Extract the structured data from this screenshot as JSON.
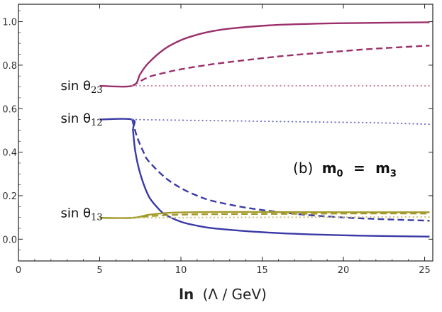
{
  "chart_data": {
    "type": "line",
    "title": "",
    "annotation": {
      "prefix": "(b)",
      "lhs": "m",
      "lhs_sub": "0",
      "eq": "=",
      "rhs": "m",
      "rhs_sub": "3"
    },
    "xlabel": {
      "main": "ln",
      "paren": "(Λ / GeV)"
    },
    "ylabel": "",
    "xlim": [
      0,
      25.5
    ],
    "ylim": [
      -0.1,
      1.08
    ],
    "x_ticks": [
      0,
      5,
      10,
      15,
      20,
      25
    ],
    "y_ticks": [
      0.0,
      0.2,
      0.4,
      0.6,
      0.8,
      1.0
    ],
    "x_tick_labels": [
      "0",
      "5",
      "10",
      "15",
      "20",
      "25"
    ],
    "y_tick_labels": [
      "0.0",
      "0.2",
      "0.4",
      "0.6",
      "0.8",
      "1.0"
    ],
    "curve_labels": [
      {
        "name": "sin θ23",
        "text": "sin θ",
        "sub": "23",
        "x": 2.6,
        "y": 0.705
      },
      {
        "name": "sin θ12",
        "text": "sin θ",
        "sub": "12",
        "x": 2.6,
        "y": 0.555
      },
      {
        "name": "sin θ13",
        "text": "sin θ",
        "sub": "13",
        "x": 2.6,
        "y": 0.12
      }
    ],
    "series": [
      {
        "name": "sin θ23 solid",
        "color": "#9b2f6b",
        "style": "solid",
        "x": [
          5,
          7,
          7.5,
          8,
          9,
          10,
          11,
          12,
          13,
          15,
          17,
          20,
          25.3
        ],
        "y": [
          0.705,
          0.705,
          0.76,
          0.81,
          0.875,
          0.915,
          0.94,
          0.957,
          0.968,
          0.981,
          0.988,
          0.993,
          0.997
        ]
      },
      {
        "name": "sin θ23 dashed",
        "color": "#9b2f6b",
        "style": "dashed",
        "x": [
          7,
          8,
          9,
          10,
          12,
          15,
          17,
          20,
          22,
          25.3
        ],
        "y": [
          0.705,
          0.745,
          0.765,
          0.781,
          0.805,
          0.832,
          0.847,
          0.865,
          0.876,
          0.89
        ]
      },
      {
        "name": "sin θ23 dotted",
        "color": "#c97fa5",
        "style": "dotted",
        "x": [
          7,
          25.3
        ],
        "y": [
          0.705,
          0.705
        ]
      },
      {
        "name": "sin θ12 solid",
        "color": "#3a3aa6",
        "style": "solid",
        "x": [
          5,
          7,
          7.05,
          7.2,
          7.5,
          8,
          8.5,
          9,
          10,
          11,
          12,
          14,
          16,
          18,
          20,
          22,
          25.3
        ],
        "y": [
          0.55,
          0.55,
          0.5,
          0.4,
          0.3,
          0.2,
          0.15,
          0.115,
          0.08,
          0.062,
          0.05,
          0.037,
          0.028,
          0.022,
          0.018,
          0.015,
          0.012
        ]
      },
      {
        "name": "sin θ12 dashed",
        "color": "#3a3aa6",
        "style": "dashed",
        "x": [
          7,
          7.3,
          7.7,
          8,
          9,
          10,
          11,
          12,
          14,
          16,
          18,
          20,
          22,
          25.3
        ],
        "y": [
          0.55,
          0.47,
          0.4,
          0.36,
          0.285,
          0.235,
          0.2,
          0.175,
          0.145,
          0.125,
          0.11,
          0.1,
          0.093,
          0.085
        ]
      },
      {
        "name": "sin θ12 dotted",
        "color": "#7575c4",
        "style": "dotted",
        "x": [
          7,
          12,
          17,
          22,
          25.3
        ],
        "y": [
          0.55,
          0.545,
          0.54,
          0.535,
          0.528
        ]
      },
      {
        "name": "sin θ13 solid",
        "color": "#a39a2a",
        "style": "solid",
        "x": [
          5,
          7,
          8,
          9,
          10,
          12,
          15,
          20,
          25.3
        ],
        "y": [
          0.098,
          0.098,
          0.112,
          0.12,
          0.123,
          0.125,
          0.125,
          0.124,
          0.124
        ]
      },
      {
        "name": "sin θ13 dashed",
        "color": "#a39a2a",
        "style": "dashed",
        "x": [
          7,
          8,
          9,
          10,
          12,
          15,
          18,
          20,
          25.3
        ],
        "y": [
          0.098,
          0.105,
          0.11,
          0.113,
          0.115,
          0.116,
          0.117,
          0.118,
          0.118
        ]
      },
      {
        "name": "sin θ13 dotted",
        "color": "#c9c07a",
        "style": "dotted",
        "x": [
          7,
          12,
          17,
          22,
          25.3
        ],
        "y": [
          0.098,
          0.1,
          0.101,
          0.102,
          0.102
        ]
      }
    ]
  }
}
